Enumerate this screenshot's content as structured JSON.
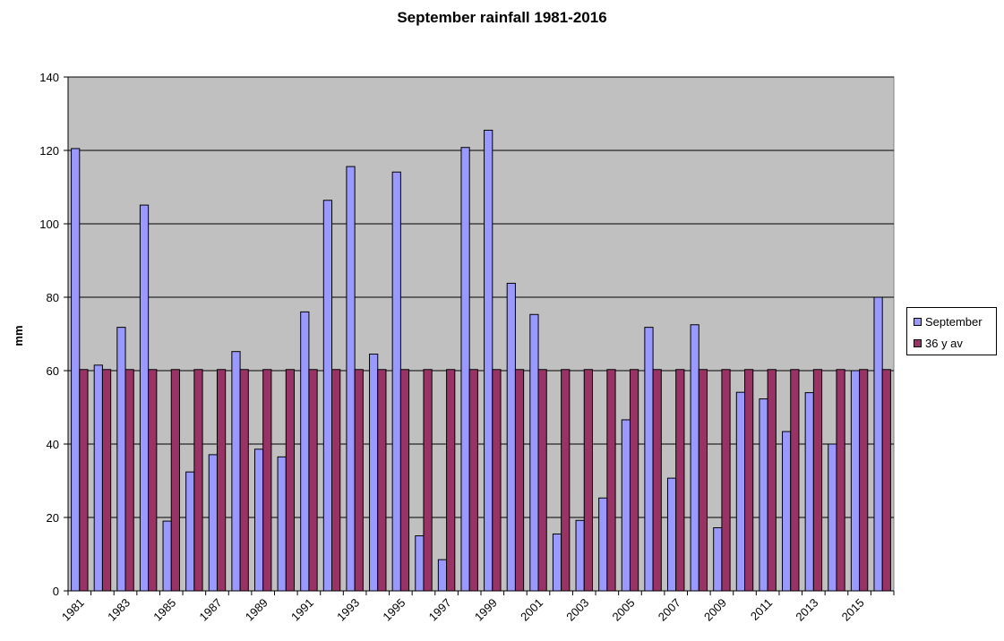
{
  "chart_data": {
    "type": "bar",
    "title": "September rainfall 1981-2016",
    "ylabel": "mm",
    "xlabel": "",
    "ylim": [
      0,
      140
    ],
    "yticks": [
      0,
      20,
      40,
      60,
      80,
      100,
      120,
      140
    ],
    "grid": true,
    "legend_position": "right",
    "categories": [
      "1981",
      "1982",
      "1983",
      "1984",
      "1985",
      "1986",
      "1987",
      "1988",
      "1989",
      "1990",
      "1991",
      "1992",
      "1993",
      "1994",
      "1995",
      "1996",
      "1997",
      "1998",
      "1999",
      "2000",
      "2001",
      "2002",
      "2003",
      "2004",
      "2005",
      "2006",
      "2007",
      "2008",
      "2009",
      "2010",
      "2011",
      "2012",
      "2013",
      "2014",
      "2015",
      "2016"
    ],
    "tick_labels": [
      "1981",
      "1983",
      "1985",
      "1987",
      "1989",
      "1991",
      "1993",
      "1995",
      "1997",
      "1999",
      "2001",
      "2003",
      "2005",
      "2007",
      "2009",
      "2011",
      "2013",
      "2015"
    ],
    "series": [
      {
        "name": "September",
        "color": "#9999ff",
        "values": [
          120.5,
          61.5,
          71.8,
          105.1,
          19,
          32.4,
          37.1,
          65.2,
          38.6,
          36.5,
          76,
          106.4,
          115.6,
          64.5,
          114.1,
          15,
          8.5,
          120.8,
          125.5,
          83.8,
          75.3,
          15.5,
          19.2,
          25.3,
          46.6,
          71.8,
          30.7,
          72.5,
          17.2,
          54.1,
          52.3,
          43.4,
          54,
          40,
          60,
          80
        ]
      },
      {
        "name": "36 y av",
        "color": "#993366",
        "values": [
          60.3,
          60.3,
          60.3,
          60.3,
          60.3,
          60.3,
          60.3,
          60.3,
          60.3,
          60.3,
          60.3,
          60.3,
          60.3,
          60.3,
          60.3,
          60.3,
          60.3,
          60.3,
          60.3,
          60.3,
          60.3,
          60.3,
          60.3,
          60.3,
          60.3,
          60.3,
          60.3,
          60.3,
          60.3,
          60.3,
          60.3,
          60.3,
          60.3,
          60.3,
          60.3,
          60.3
        ]
      }
    ],
    "plot_background": "#c0c0c0"
  }
}
